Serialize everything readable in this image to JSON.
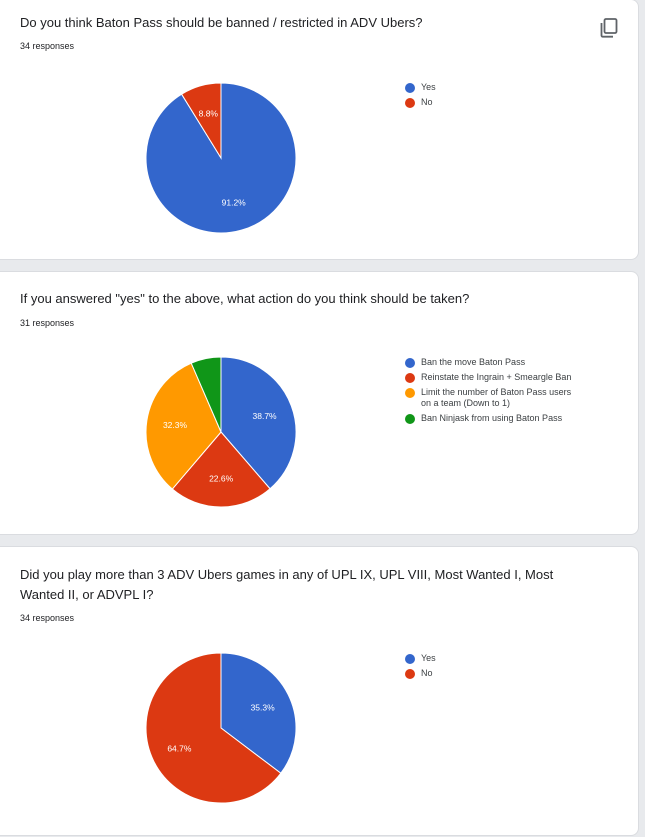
{
  "colors": {
    "blue": "#3366cc",
    "red": "#dc3912",
    "orange": "#ff9900",
    "green": "#109618"
  },
  "questions": [
    {
      "title": "Do you think Baton Pass should be banned / restricted in ADV Ubers?",
      "responses": "34 responses",
      "copy_icon": "copy-chart-icon"
    },
    {
      "title": "If you answered \"yes\" to the above, what action do you think should be taken?",
      "responses": "31 responses"
    },
    {
      "title": "Did you play more than 3 ADV Ubers games in any of UPL IX, UPL VIII, Most Wanted I, Most Wanted II, or ADVPL I?",
      "responses": "34 responses"
    }
  ],
  "chart_data": [
    {
      "type": "pie",
      "title": "Do you think Baton Pass should be banned / restricted in ADV Ubers?",
      "categories": [
        "Yes",
        "No"
      ],
      "values": [
        91.2,
        8.8
      ],
      "labels": [
        "91.2%",
        "8.8%"
      ],
      "colors": [
        "#3366cc",
        "#dc3912"
      ],
      "legend": "right"
    },
    {
      "type": "pie",
      "title": "If you answered \"yes\" to the above, what action do you think should be taken?",
      "categories": [
        "Ban the move Baton Pass",
        "Reinstate the Ingrain + Smeargle Ban",
        "Limit the number of Baton Pass users on a team (Down to 1)",
        "Ban Ninjask from using Baton Pass"
      ],
      "legend_lines": [
        [
          "Ban the move Baton Pass"
        ],
        [
          "Reinstate the Ingrain + Smeargle Ban"
        ],
        [
          "Limit the number of Baton Pass users",
          "on a team (Down to 1)"
        ],
        [
          "Ban Ninjask from using Baton Pass"
        ]
      ],
      "values": [
        38.7,
        22.6,
        32.3,
        6.5
      ],
      "labels": [
        "38.7%",
        "22.6%",
        "32.3%",
        ""
      ],
      "colors": [
        "#3366cc",
        "#dc3912",
        "#ff9900",
        "#109618"
      ],
      "legend": "right"
    },
    {
      "type": "pie",
      "title": "Did you play more than 3 ADV Ubers games in any of UPL IX, UPL VIII, Most Wanted I, Most Wanted II, or ADVPL I?",
      "categories": [
        "Yes",
        "No"
      ],
      "values": [
        35.3,
        64.7
      ],
      "labels": [
        "35.3%",
        "64.7%"
      ],
      "colors": [
        "#3366cc",
        "#dc3912"
      ],
      "legend": "right"
    }
  ]
}
